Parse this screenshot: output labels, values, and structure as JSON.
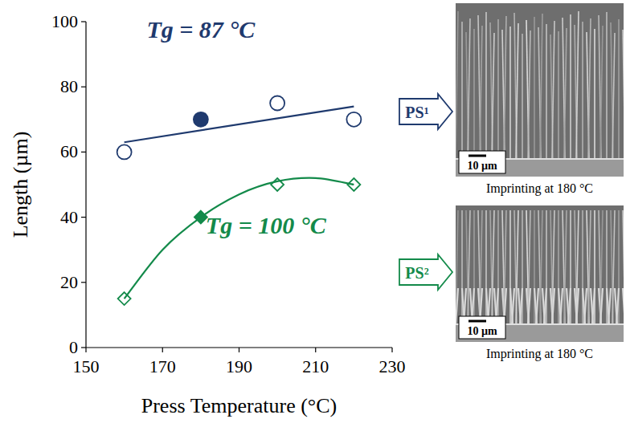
{
  "chart_data": {
    "type": "scatter",
    "xlabel": "Press Temperature (°C)",
    "ylabel": "Length (µm)",
    "xlim": [
      150,
      230
    ],
    "xticks": [
      150,
      170,
      190,
      210,
      230
    ],
    "ylim": [
      0,
      100
    ],
    "yticks": [
      0,
      20,
      40,
      60,
      80,
      100
    ],
    "grid": false,
    "series": [
      {
        "color": "#1f3a6e",
        "marker": "open-circle",
        "x": [
          160,
          200,
          220
        ],
        "values": [
          60,
          75,
          70
        ]
      },
      {
        "color": "#1f3a6e",
        "marker": "filled-circle",
        "x": [
          180
        ],
        "values": [
          70
        ]
      },
      {
        "type": "line",
        "color": "#1f3a6e",
        "line_style": "straight",
        "x": [
          160,
          220
        ],
        "values": [
          63,
          74
        ]
      },
      {
        "color": "#138a4a",
        "marker": "open-diamond",
        "x": [
          160,
          200,
          220
        ],
        "values": [
          15,
          50,
          50
        ]
      },
      {
        "color": "#138a4a",
        "marker": "filled-diamond",
        "x": [
          180
        ],
        "values": [
          40
        ]
      },
      {
        "type": "line",
        "color": "#138a4a",
        "line_style": "smooth",
        "x": [
          160,
          170,
          180,
          190,
          200,
          210,
          220
        ],
        "values": [
          15,
          30,
          40,
          47,
          51,
          52,
          50
        ]
      }
    ],
    "annotations": [
      {
        "text": "Tg = 87 °C",
        "x": 180,
        "y": 95,
        "color": "#1f3a6e"
      },
      {
        "text": "Tg = 100 °C",
        "x": 197,
        "y": 35,
        "color": "#138a4a"
      }
    ]
  },
  "panels": [
    {
      "label": "PS¹",
      "color": "#1f3a6e",
      "scale_bar": "10 µm",
      "caption": "Imprinting at 180 °C"
    },
    {
      "label": "PS²",
      "color": "#138a4a",
      "scale_bar": "10 µm",
      "caption": "Imprinting at 180 °C"
    }
  ]
}
